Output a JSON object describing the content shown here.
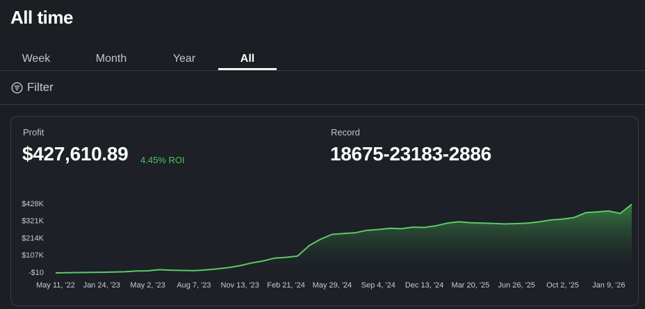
{
  "header": {
    "title": "All time"
  },
  "tabs": [
    "Week",
    "Month",
    "Year",
    "All"
  ],
  "filter": {
    "label": "Filter"
  },
  "stats": {
    "profit": {
      "label": "Profit",
      "value": "$427,610.89",
      "roi": "4.45% ROI"
    },
    "record": {
      "label": "Record",
      "value": "18675-23183-2886"
    }
  },
  "chart_data": {
    "type": "area",
    "color": "#5ccb68",
    "categories": [
      "May 11, '22",
      null,
      null,
      null,
      "Jan 24, '23",
      null,
      null,
      null,
      "May 2, '23",
      null,
      null,
      null,
      "Aug 7, '23",
      null,
      null,
      null,
      "Nov 13, '23",
      null,
      null,
      null,
      "Feb 21, '24",
      null,
      null,
      null,
      "May 29, '24",
      null,
      null,
      null,
      "Sep 4, '24",
      null,
      null,
      null,
      "Dec 13, '24",
      null,
      null,
      null,
      "Mar 20, '25",
      null,
      null,
      null,
      "Jun 26, '25",
      null,
      null,
      null,
      "Oct 2, '25",
      null,
      null,
      null,
      "Jan 9, '26",
      null,
      null
    ],
    "values": [
      0,
      1000,
      2000,
      3000,
      4000,
      5000,
      7000,
      12000,
      13000,
      20000,
      17000,
      15000,
      14000,
      18000,
      25000,
      33000,
      45000,
      62000,
      74000,
      92000,
      97000,
      105000,
      170000,
      210000,
      240000,
      245000,
      250000,
      265000,
      270000,
      278000,
      275000,
      285000,
      283000,
      293000,
      310000,
      318000,
      312000,
      310000,
      308000,
      305000,
      307000,
      310000,
      318000,
      330000,
      335000,
      345000,
      375000,
      380000,
      385000,
      370000,
      427610.89
    ],
    "ylim": [
      -10,
      428000
    ],
    "yticks": [
      {
        "value": 428000,
        "label": "$428K"
      },
      {
        "value": 321000,
        "label": "$321K"
      },
      {
        "value": 214000,
        "label": "$214K"
      },
      {
        "value": 107000,
        "label": "$107K"
      },
      {
        "value": -10,
        "label": "-$10"
      }
    ]
  }
}
